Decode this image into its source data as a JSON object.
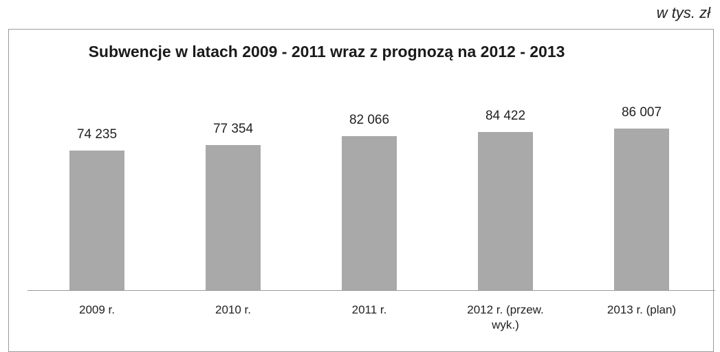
{
  "chart_data": {
    "type": "bar",
    "title": "Subwencje w latach 2009 - 2011 wraz z prognozą na 2012 - 2013",
    "unit": "w tys. zł",
    "categories": [
      "2009 r.",
      "2010 r.",
      "2011 r.",
      "2012 r. (przew. wyk.)",
      "2013 r. (plan)"
    ],
    "values": [
      74235,
      77354,
      82066,
      84422,
      86007
    ],
    "value_labels": [
      "74 235",
      "77 354",
      "82 066",
      "84 422",
      "86 007"
    ],
    "color": "#a9a9a9",
    "ylim": [
      0,
      100000
    ]
  }
}
